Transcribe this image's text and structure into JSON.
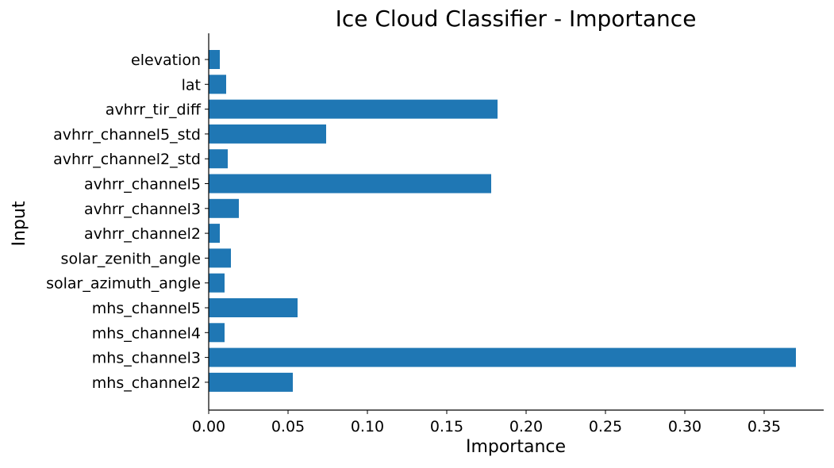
{
  "chart_data": {
    "type": "bar",
    "orientation": "horizontal",
    "title": "Ice Cloud Classifier - Importance",
    "xlabel": "Importance",
    "ylabel": "Input",
    "xlim": [
      0.0,
      0.3875
    ],
    "xticks": [
      "0.00",
      "0.05",
      "0.10",
      "0.15",
      "0.20",
      "0.25",
      "0.30",
      "0.35"
    ],
    "grid": false,
    "legend": "none",
    "bar_color": "#1f77b4",
    "categories": [
      "elevation",
      "lat",
      "avhrr_tir_diff",
      "avhrr_channel5_std",
      "avhrr_channel2_std",
      "avhrr_channel5",
      "avhrr_channel3",
      "avhrr_channel2",
      "solar_zenith_angle",
      "solar_azimuth_angle",
      "mhs_channel5",
      "mhs_channel4",
      "mhs_channel3",
      "mhs_channel2"
    ],
    "values": [
      0.007,
      0.011,
      0.182,
      0.074,
      0.012,
      0.178,
      0.019,
      0.007,
      0.014,
      0.01,
      0.056,
      0.01,
      0.37,
      0.053
    ]
  }
}
